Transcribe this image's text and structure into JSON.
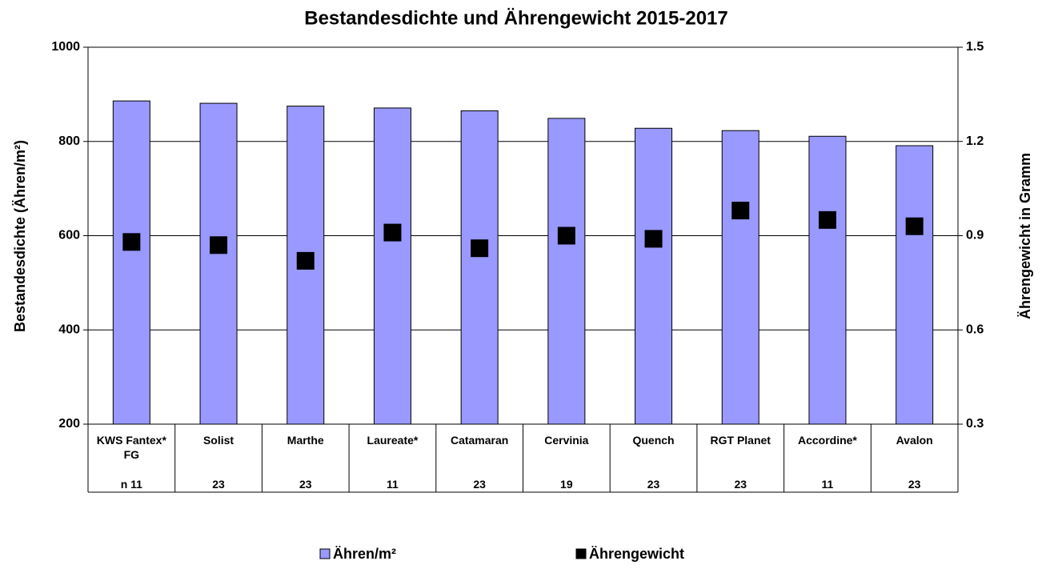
{
  "chart_data": {
    "type": "bar_scatter",
    "title": "Bestandesdichte und Ährengewicht 2015-2017",
    "ylabel": "Bestandesdichte (Ähren/m²)",
    "y2label": "Ährengewicht in Gramm",
    "categories": [
      "KWS Fantex* FG",
      "Solist",
      "Marthe",
      "Laureate*",
      "Catamaran",
      "Cervinia",
      "Quench",
      "RGT Planet",
      "Accordine*",
      "Avalon"
    ],
    "counts": [
      "n 11",
      "23",
      "23",
      "11",
      "23",
      "19",
      "23",
      "23",
      "11",
      "23"
    ],
    "series": [
      {
        "name": "Ähren/m²",
        "color": "#9999ff",
        "values": [
          886,
          881,
          875,
          871,
          865,
          849,
          828,
          823,
          811,
          791
        ]
      },
      {
        "name": "Ährengewicht",
        "color": "#000000",
        "axis": "y2",
        "values": [
          0.88,
          0.87,
          0.82,
          0.91,
          0.86,
          0.9,
          0.89,
          0.98,
          0.95,
          0.93
        ]
      }
    ],
    "ylim": [
      200,
      1000
    ],
    "yticks": [
      200,
      400,
      600,
      800,
      1000
    ],
    "y2lim": [
      0.3,
      1.5
    ],
    "y2ticks": [
      0.3,
      0.6,
      0.9,
      1.2,
      1.5
    ],
    "grid": true,
    "legend": "bottom"
  }
}
